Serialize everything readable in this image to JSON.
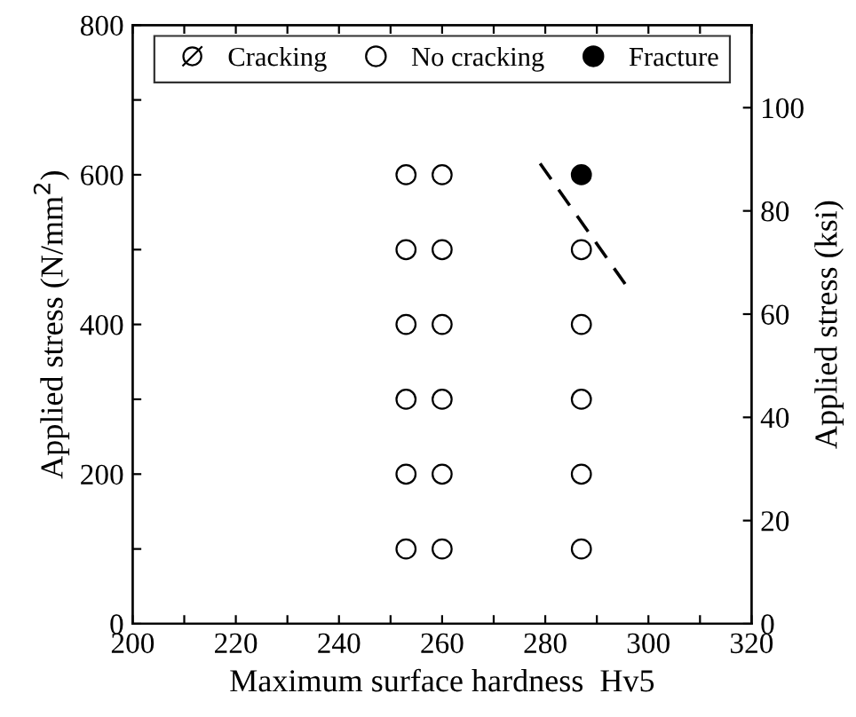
{
  "chart_data": {
    "type": "scatter",
    "xlabel": "Maximum surface hardness  Hv5",
    "ylabel": "Applied stress (N/mm$^{2}$)",
    "y2label": "Applied stress (ksi)",
    "xlim": [
      200,
      320
    ],
    "ylim": [
      0,
      800
    ],
    "y2lim": [
      0,
      116
    ],
    "xticks": [
      200,
      {
        "value": 210,
        "label": null
      },
      220,
      {
        "value": 230,
        "label": null
      },
      240,
      {
        "value": 250,
        "label": null
      },
      260,
      {
        "value": 270,
        "label": null
      },
      280,
      {
        "value": 290,
        "label": null
      },
      300,
      {
        "value": 310,
        "label": null
      },
      320
    ],
    "yticks": [
      0,
      {
        "value": 100,
        "label": null
      },
      200,
      {
        "value": 300,
        "label": null
      },
      400,
      {
        "value": 500,
        "label": null
      },
      600,
      {
        "value": 700,
        "label": null
      },
      800
    ],
    "y2ticks": [
      0,
      20,
      40,
      60,
      80,
      100
    ],
    "grid": false,
    "legend": "top",
    "marker": "circle",
    "series": [
      {
        "name": "Cracking",
        "color": "#ffffff",
        "marker": "cross"
      },
      {
        "name": "No cracking",
        "color": "#ffffff",
        "x": [
          253,
          253,
          253,
          253,
          253,
          253,
          260,
          260,
          260,
          260,
          260,
          260,
          287,
          287,
          287,
          287,
          287
        ],
        "values": [
          100,
          200,
          300,
          400,
          500,
          600,
          100,
          200,
          300,
          400,
          500,
          600,
          100,
          200,
          300,
          400,
          500
        ]
      },
      {
        "name": "Fracture",
        "color": "#000000",
        "x": [
          287
        ],
        "values": [
          600
        ]
      },
      {
        "type": "line",
        "color": "#000000",
        "line_style": "dashed",
        "marker": "none",
        "x": [
          279,
          296
        ],
        "values": [
          615,
          449
        ]
      }
    ]
  }
}
